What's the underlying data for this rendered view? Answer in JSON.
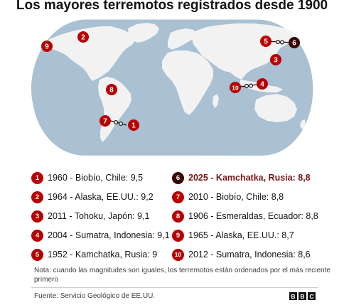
{
  "title": "Los mayores terremotos registrados desde 1900",
  "colors": {
    "ocean": "#a9c1d3",
    "land": "#f2f2f2",
    "marker": "#b80000",
    "marker_highlight": "#3a0606",
    "highlight_text": "#7a1515"
  },
  "map_markers": [
    {
      "rank": "1",
      "highlight": false
    },
    {
      "rank": "2",
      "highlight": false
    },
    {
      "rank": "3",
      "highlight": false
    },
    {
      "rank": "4",
      "highlight": false
    },
    {
      "rank": "5",
      "highlight": false
    },
    {
      "rank": "6",
      "highlight": true
    },
    {
      "rank": "7",
      "highlight": false
    },
    {
      "rank": "8",
      "highlight": false
    },
    {
      "rank": "9",
      "highlight": false
    },
    {
      "rank": "10",
      "highlight": false
    }
  ],
  "legend": [
    {
      "rank": "1",
      "text": "1960 - Biobío, Chile: 9,5",
      "highlight": false
    },
    {
      "rank": "2",
      "text": "1964 - Alaska, EE.UU.: 9,2",
      "highlight": false
    },
    {
      "rank": "3",
      "text": "2011 - Tohoku, Japón: 9,1",
      "highlight": false
    },
    {
      "rank": "4",
      "text": "2004 - Sumatra, Indonesia: 9,1",
      "highlight": false
    },
    {
      "rank": "5",
      "text": "1952 - Kamchatka, Rusia: 9",
      "highlight": false
    },
    {
      "rank": "6",
      "text": "2025 - Kamchatka, Rusia: 8,8",
      "highlight": true
    },
    {
      "rank": "7",
      "text": "2010 - Biobío, Chile: 8,8",
      "highlight": false
    },
    {
      "rank": "8",
      "text": "1906 - Esmeraldas, Ecuador: 8,8",
      "highlight": false
    },
    {
      "rank": "9",
      "text": "1965 - Alaska, EE.UU.: 8,7",
      "highlight": false
    },
    {
      "rank": "10",
      "text": "2012 - Sumatra, Indonesia: 8,6",
      "highlight": false
    }
  ],
  "note": "Nota: cuando las magnitudes son iguales, los terremotos están ordenados por el más reciente primero",
  "source": "Fuente: Servicio Geológico de EE.UU.",
  "logo": [
    "B",
    "B",
    "C"
  ]
}
